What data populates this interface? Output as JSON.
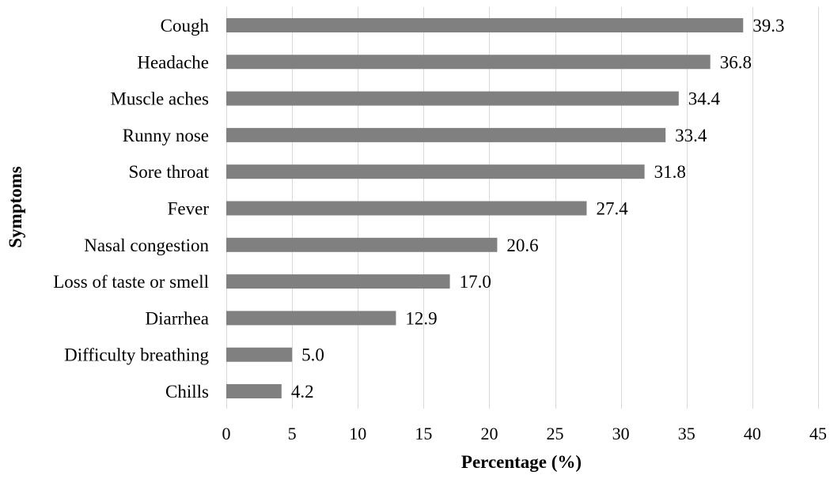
{
  "chart_data": {
    "type": "bar",
    "orientation": "horizontal",
    "title": "",
    "xlabel": "Percentage (%)",
    "ylabel": "Symptoms",
    "xlim": [
      0,
      45
    ],
    "x_ticks": [
      0,
      5,
      10,
      15,
      20,
      25,
      30,
      35,
      40,
      45
    ],
    "grid": "vertical",
    "legend": "none",
    "bar_color": "#808080",
    "categories": [
      "Cough",
      "Headache",
      "Muscle aches",
      "Runny nose",
      "Sore throat",
      "Fever",
      "Nasal congestion",
      "Loss of taste or smell",
      "Diarrhea",
      "Difficulty breathing",
      "Chills"
    ],
    "values": [
      39.3,
      36.8,
      34.4,
      33.4,
      31.8,
      27.4,
      20.6,
      17.0,
      12.9,
      5.0,
      4.2
    ],
    "value_labels": [
      "39.3",
      "36.8",
      "34.4",
      "33.4",
      "31.8",
      "27.4",
      "20.6",
      "17.0",
      "12.9",
      "5.0",
      "4.2"
    ]
  }
}
